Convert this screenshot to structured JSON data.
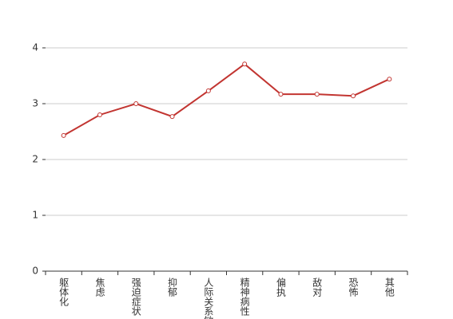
{
  "chart_data": {
    "type": "line",
    "categories": [
      "躯体化",
      "焦虑",
      "强迫症状",
      "抑郁",
      "人际关系敏感",
      "精神病性",
      "偏执",
      "敌对",
      "恐怖",
      "其他"
    ],
    "values": [
      2.43,
      2.8,
      3.0,
      2.77,
      3.23,
      3.71,
      3.17,
      3.17,
      3.14,
      3.44
    ],
    "color": "#c23531",
    "ylim": [
      0,
      4
    ],
    "yticks": [
      0,
      1,
      2,
      3,
      4
    ],
    "grid": true
  }
}
